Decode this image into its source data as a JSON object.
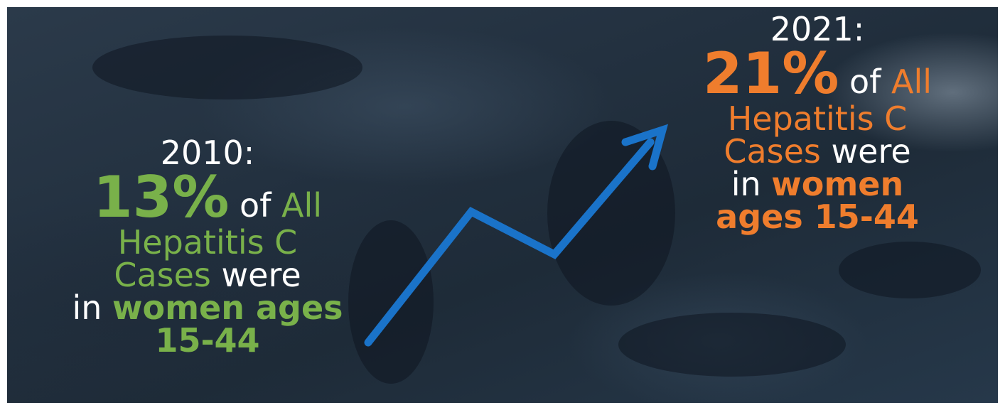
{
  "left_stat": {
    "year": "2010:",
    "percent": "13%",
    "of": "of",
    "all": "All",
    "disease": "Hepatitis C",
    "cases": "Cases",
    "were": "were",
    "in": "in",
    "group": "women ages",
    "ages": "15-44"
  },
  "right_stat": {
    "year": "2021:",
    "percent": "21%",
    "of": "of",
    "all": "All",
    "disease": "Hepatitis C",
    "cases": "Cases",
    "were": "were",
    "in": "in",
    "group": "women",
    "ages": "ages 15-44"
  },
  "colors": {
    "left_accent": "#79b14a",
    "right_accent": "#ef7d2d",
    "trend_arrow": "#1a73c9",
    "text": "#ffffff"
  },
  "icons": [
    "trend-up-arrow-icon"
  ]
}
